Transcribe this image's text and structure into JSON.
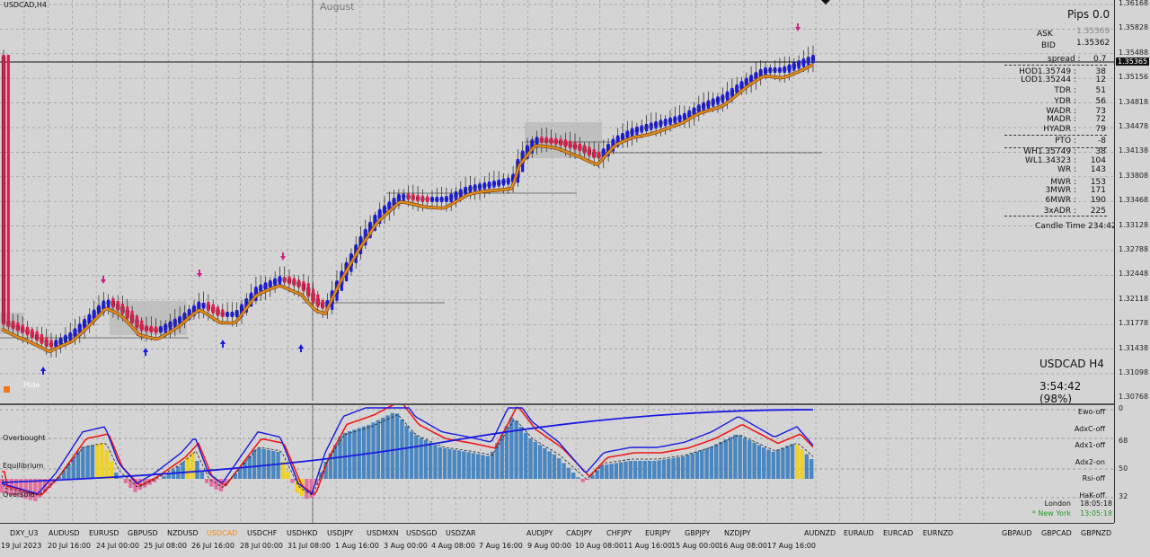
{
  "window": {
    "symbol_title": "USDCAD,H4",
    "month_label": "August"
  },
  "info_panel": {
    "pips": "Pips 0.0",
    "ask_label": "ASK",
    "ask_value": "1.35369",
    "bid_label": "BID",
    "bid_value": "1.35362",
    "spread_label": "spread :",
    "spread_value": "0.7",
    "rows": [
      {
        "label": "HOD1.35749 :",
        "value": "38"
      },
      {
        "label": "LOD1.35244 :",
        "value": "12"
      },
      {
        "label": "TDR :",
        "value": "51"
      },
      {
        "label": "YDR :",
        "value": "56"
      },
      {
        "label": "WADR :",
        "value": "73"
      },
      {
        "label": "MADR :",
        "value": "72"
      },
      {
        "label": "HYADR :",
        "value": "79"
      },
      {
        "label": "PTO :",
        "value": "-8"
      },
      {
        "label": "WH1.35749 :",
        "value": "38"
      },
      {
        "label": "WL1.34323 :",
        "value": "104"
      },
      {
        "label": "WR :",
        "value": "143"
      },
      {
        "label": "MWR :",
        "value": "153"
      },
      {
        "label": "3MWR :",
        "value": "171"
      },
      {
        "label": "6MWR :",
        "value": "190"
      },
      {
        "label": "3xADR :",
        "value": "225"
      }
    ],
    "candle_time": "Candle Time 234:42",
    "symbol_tf": "USDCAD   H4",
    "countdown": "3:54:42 (98%)"
  },
  "hide_label": "Hide",
  "price_axis": [
    "1.36168",
    "1.35828",
    "1.35488",
    "1.35156",
    "1.34818",
    "1.34478",
    "1.34138",
    "1.33808",
    "1.33468",
    "1.33128",
    "1.32788",
    "1.32448",
    "1.32118",
    "1.31778",
    "1.31438",
    "1.31098",
    "1.30768"
  ],
  "current_price": "1.35365",
  "sub_axis": [
    "0",
    "68",
    "50",
    "32"
  ],
  "sub_left_labels": {
    "overbought": "Overbought",
    "equilibrium": "Equilibrium",
    "oversold": "Oversold"
  },
  "sub_right_labels": [
    "Ewo-off",
    "AdxC-off",
    "Adx1-off",
    "Adx2-on",
    "Rsi-off",
    "HaK-off"
  ],
  "sessions": [
    {
      "name": "London",
      "time": "18:05:18",
      "color": "#111111"
    },
    {
      "name": "* New York",
      "time": "13:05:18",
      "color": "#2a9a2a"
    }
  ],
  "pairs": [
    {
      "label": "DXY_U3",
      "active": false
    },
    {
      "label": "AUDUSD",
      "active": false
    },
    {
      "label": "EURUSD",
      "active": false
    },
    {
      "label": "GBPUSD",
      "active": false
    },
    {
      "label": "NZDUSD",
      "active": false
    },
    {
      "label": "USDCAD",
      "active": true
    },
    {
      "label": "USDCHF",
      "active": false
    },
    {
      "label": "USDHKD",
      "active": false
    },
    {
      "label": "USDJPY",
      "active": false
    },
    {
      "label": "USDMXN",
      "active": false
    },
    {
      "label": "USDSGD",
      "active": false
    },
    {
      "label": "USDZAR",
      "active": false
    },
    {
      "label": "AUDJPY",
      "active": false
    },
    {
      "label": "CADJPY",
      "active": false
    },
    {
      "label": "CHFJPY",
      "active": false
    },
    {
      "label": "EURJPY",
      "active": false
    },
    {
      "label": "GBPJPY",
      "active": false
    },
    {
      "label": "NZDJPY",
      "active": false
    },
    {
      "label": "AUDNZD",
      "active": false
    },
    {
      "label": "EURAUD",
      "active": false
    },
    {
      "label": "EURCAD",
      "active": false
    },
    {
      "label": "EURNZD",
      "active": false
    },
    {
      "label": "GBPAUD",
      "active": false
    },
    {
      "label": "GBPCAD",
      "active": false
    },
    {
      "label": "GBPNZD",
      "active": false
    }
  ],
  "dates": [
    "19 Jul 2023",
    "20 Jul 16:00",
    "24 Jul 00:00",
    "25 Jul 08:00",
    "26 Jul 16:00",
    "28 Jul 00:00",
    "31 Jul 08:00",
    "1 Aug 16:00",
    "3 Aug 00:00",
    "4 Aug 08:00",
    "7 Aug 16:00",
    "9 Aug 00:00",
    "10 Aug 08:00",
    "11 Aug 16:00",
    "15 Aug 00:00",
    "16 Aug 08:00",
    "17 Aug 16:00"
  ],
  "colors": {
    "bull": "#1a1ae0",
    "bear": "#e01a4a",
    "ma": "#e08a1a",
    "active_pair": "#f08a1a",
    "hist": "#4a86c0",
    "hist_neg": "#e070a0",
    "hist_hi": "#f0d020",
    "line_red": "#f01818",
    "line_blue": "#1a1ae0"
  }
}
